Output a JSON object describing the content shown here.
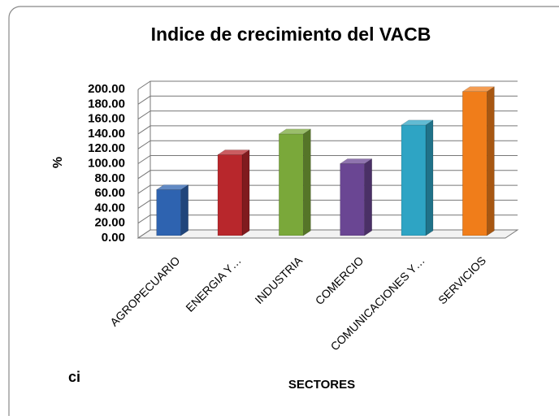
{
  "chart_data": {
    "type": "bar3d",
    "title": "Indice de crecimiento del VACB",
    "categories": [
      "AGROPECUARIO",
      "ENERGIA Y…",
      "INDUSTRIA",
      "COMERCIO",
      "COMUNICACIONES Y…",
      "SERVICIOS"
    ],
    "series": [
      {
        "name": "%",
        "values": [
          65,
          112,
          140,
          100,
          152,
          197
        ],
        "colors": [
          "#2e63b0",
          "#b8272c",
          "#7aa83a",
          "#6a4693",
          "#2ea4c4",
          "#f07d1a"
        ]
      }
    ],
    "y_label": "%",
    "x_label": "SECTORES",
    "ylim": [
      0,
      200
    ],
    "yticks": [
      {
        "value": 0,
        "label": "0.00"
      },
      {
        "value": 20,
        "label": "20.00"
      },
      {
        "value": 40,
        "label": "40.00"
      },
      {
        "value": 60,
        "label": "60.00"
      },
      {
        "value": 80,
        "label": "80.00"
      },
      {
        "value": 100,
        "label": "100.00"
      },
      {
        "value": 120,
        "label": "120.00"
      },
      {
        "value": 140,
        "label": "140.00"
      },
      {
        "value": 160,
        "label": "160.00"
      },
      {
        "value": 180,
        "label": "180.00"
      },
      {
        "value": 200,
        "label": "200.00"
      }
    ],
    "grid": true
  },
  "fragment": "ci"
}
